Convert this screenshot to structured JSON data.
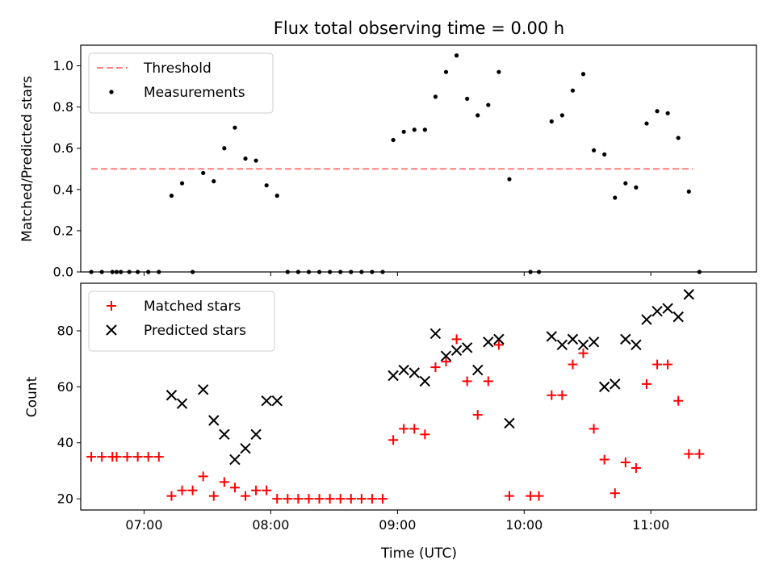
{
  "chart_data": [
    {
      "type": "scatter",
      "title": "Flux total observing time = 0.00 h",
      "xlabel": "",
      "ylabel": "Matched/Predicted stars",
      "ylim": [
        0,
        1.1
      ],
      "yticks": [
        "0.0",
        "0.2",
        "0.4",
        "0.6",
        "0.8",
        "1.0"
      ],
      "grid": false,
      "legend_location": "upper left",
      "threshold": {
        "name": "Threshold",
        "value": 0.5,
        "x_range": [
          "06:35",
          "11:20"
        ],
        "color": "#ff7f7f",
        "style": "dashed"
      },
      "series": [
        {
          "name": "Measurements",
          "color": "#000000",
          "marker": "dot",
          "points": [
            [
              "06:35",
              0.0
            ],
            [
              "06:40",
              0.0
            ],
            [
              "06:45",
              0.0
            ],
            [
              "06:47",
              0.0
            ],
            [
              "06:49",
              0.0
            ],
            [
              "06:53",
              0.0
            ],
            [
              "06:57",
              0.0
            ],
            [
              "07:02",
              0.0
            ],
            [
              "07:07",
              0.0
            ],
            [
              "07:13",
              0.37
            ],
            [
              "07:18",
              0.43
            ],
            [
              "07:23",
              0.0
            ],
            [
              "07:28",
              0.48
            ],
            [
              "07:33",
              0.44
            ],
            [
              "07:38",
              0.6
            ],
            [
              "07:43",
              0.7
            ],
            [
              "07:48",
              0.55
            ],
            [
              "07:53",
              0.54
            ],
            [
              "07:58",
              0.42
            ],
            [
              "08:03",
              0.37
            ],
            [
              "08:08",
              0.0
            ],
            [
              "08:13",
              0.0
            ],
            [
              "08:18",
              0.0
            ],
            [
              "08:23",
              0.0
            ],
            [
              "08:28",
              0.0
            ],
            [
              "08:33",
              0.0
            ],
            [
              "08:38",
              0.0
            ],
            [
              "08:43",
              0.0
            ],
            [
              "08:48",
              0.0
            ],
            [
              "08:53",
              0.0
            ],
            [
              "08:58",
              0.64
            ],
            [
              "09:03",
              0.68
            ],
            [
              "09:08",
              0.69
            ],
            [
              "09:13",
              0.69
            ],
            [
              "09:18",
              0.85
            ],
            [
              "09:23",
              0.97
            ],
            [
              "09:28",
              1.05
            ],
            [
              "09:33",
              0.84
            ],
            [
              "09:38",
              0.76
            ],
            [
              "09:43",
              0.81
            ],
            [
              "09:48",
              0.97
            ],
            [
              "09:53",
              0.45
            ],
            [
              "10:03",
              0.0
            ],
            [
              "10:07",
              0.0
            ],
            [
              "10:13",
              0.73
            ],
            [
              "10:18",
              0.76
            ],
            [
              "10:23",
              0.88
            ],
            [
              "10:28",
              0.96
            ],
            [
              "10:33",
              0.59
            ],
            [
              "10:38",
              0.57
            ],
            [
              "10:43",
              0.36
            ],
            [
              "10:48",
              0.43
            ],
            [
              "10:53",
              0.41
            ],
            [
              "10:58",
              0.72
            ],
            [
              "11:03",
              0.78
            ],
            [
              "11:08",
              0.77
            ],
            [
              "11:13",
              0.65
            ],
            [
              "11:18",
              0.39
            ],
            [
              "11:23",
              0.0
            ]
          ]
        }
      ]
    },
    {
      "type": "scatter",
      "title": "",
      "xlabel": "Time (UTC)",
      "ylabel": "Count",
      "ylim": [
        16,
        97
      ],
      "yticks": [
        "20",
        "40",
        "60",
        "80"
      ],
      "xticks": [
        "07:00",
        "08:00",
        "09:00",
        "10:00",
        "11:00"
      ],
      "xlim": [
        "06:30",
        "11:50"
      ],
      "grid": false,
      "legend_location": "upper left",
      "series": [
        {
          "name": "Matched stars",
          "color": "#ff0000",
          "marker": "plus",
          "points": [
            [
              "06:35",
              35
            ],
            [
              "06:40",
              35
            ],
            [
              "06:45",
              35
            ],
            [
              "06:47",
              35
            ],
            [
              "06:52",
              35
            ],
            [
              "06:57",
              35
            ],
            [
              "07:02",
              35
            ],
            [
              "07:07",
              35
            ],
            [
              "07:13",
              21
            ],
            [
              "07:18",
              23
            ],
            [
              "07:23",
              23
            ],
            [
              "07:28",
              28
            ],
            [
              "07:33",
              21
            ],
            [
              "07:38",
              26
            ],
            [
              "07:43",
              24
            ],
            [
              "07:48",
              21
            ],
            [
              "07:53",
              23
            ],
            [
              "07:58",
              23
            ],
            [
              "08:03",
              20
            ],
            [
              "08:08",
              20
            ],
            [
              "08:13",
              20
            ],
            [
              "08:18",
              20
            ],
            [
              "08:23",
              20
            ],
            [
              "08:28",
              20
            ],
            [
              "08:33",
              20
            ],
            [
              "08:38",
              20
            ],
            [
              "08:43",
              20
            ],
            [
              "08:48",
              20
            ],
            [
              "08:53",
              20
            ],
            [
              "08:58",
              41
            ],
            [
              "09:03",
              45
            ],
            [
              "09:08",
              45
            ],
            [
              "09:13",
              43
            ],
            [
              "09:18",
              67
            ],
            [
              "09:23",
              69
            ],
            [
              "09:28",
              77
            ],
            [
              "09:33",
              62
            ],
            [
              "09:38",
              50
            ],
            [
              "09:43",
              62
            ],
            [
              "09:48",
              75
            ],
            [
              "09:53",
              21
            ],
            [
              "10:03",
              21
            ],
            [
              "10:07",
              21
            ],
            [
              "10:13",
              57
            ],
            [
              "10:18",
              57
            ],
            [
              "10:23",
              68
            ],
            [
              "10:28",
              72
            ],
            [
              "10:33",
              45
            ],
            [
              "10:38",
              34
            ],
            [
              "10:43",
              22
            ],
            [
              "10:48",
              33
            ],
            [
              "10:53",
              31
            ],
            [
              "10:58",
              61
            ],
            [
              "11:03",
              68
            ],
            [
              "11:08",
              68
            ],
            [
              "11:13",
              55
            ],
            [
              "11:18",
              36
            ],
            [
              "11:23",
              36
            ]
          ]
        },
        {
          "name": "Predicted stars",
          "color": "#000000",
          "marker": "x",
          "points": [
            [
              "07:13",
              57
            ],
            [
              "07:18",
              54
            ],
            [
              "07:28",
              59
            ],
            [
              "07:33",
              48
            ],
            [
              "07:38",
              43
            ],
            [
              "07:43",
              34
            ],
            [
              "07:48",
              38
            ],
            [
              "07:53",
              43
            ],
            [
              "07:58",
              55
            ],
            [
              "08:03",
              55
            ],
            [
              "08:58",
              64
            ],
            [
              "09:03",
              66
            ],
            [
              "09:08",
              65
            ],
            [
              "09:13",
              62
            ],
            [
              "09:18",
              79
            ],
            [
              "09:23",
              71
            ],
            [
              "09:28",
              73
            ],
            [
              "09:33",
              74
            ],
            [
              "09:38",
              66
            ],
            [
              "09:43",
              76
            ],
            [
              "09:48",
              77
            ],
            [
              "09:53",
              47
            ],
            [
              "10:13",
              78
            ],
            [
              "10:18",
              75
            ],
            [
              "10:23",
              77
            ],
            [
              "10:28",
              75
            ],
            [
              "10:33",
              76
            ],
            [
              "10:38",
              60
            ],
            [
              "10:43",
              61
            ],
            [
              "10:48",
              77
            ],
            [
              "10:53",
              75
            ],
            [
              "10:58",
              84
            ],
            [
              "11:03",
              87
            ],
            [
              "11:08",
              88
            ],
            [
              "11:13",
              85
            ],
            [
              "11:18",
              93
            ]
          ]
        }
      ]
    }
  ]
}
